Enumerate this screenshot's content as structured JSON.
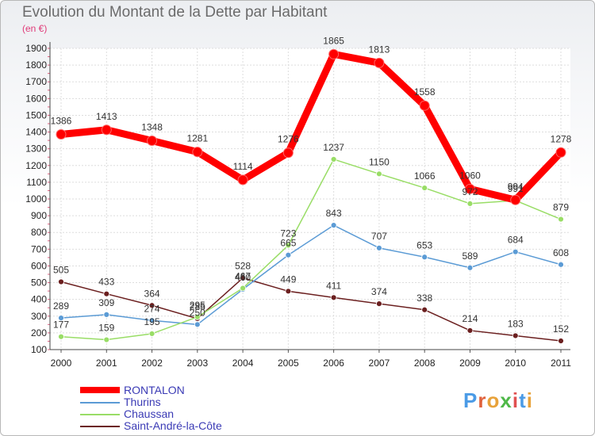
{
  "title": "Evolution du Montant de la Dette par Habitant",
  "subtitle": "(en €)",
  "logo": {
    "letters": [
      "P",
      "r",
      "o",
      "x",
      "i",
      "t",
      "i"
    ],
    "colors": [
      "#4b9be6",
      "#e0623c",
      "#e8a23a",
      "#4fb848",
      "#e05050",
      "#4b9be6",
      "#e8a23a"
    ]
  },
  "chart_data": {
    "type": "line",
    "x": [
      "2000",
      "2001",
      "2002",
      "2003",
      "2004",
      "2005",
      "2006",
      "2007",
      "2008",
      "2009",
      "2010",
      "2011"
    ],
    "ylim": [
      100,
      1900
    ],
    "yticks": [
      100,
      200,
      300,
      400,
      500,
      600,
      700,
      800,
      900,
      1000,
      1100,
      1200,
      1300,
      1400,
      1500,
      1600,
      1700,
      1800,
      1900
    ],
    "grid": true,
    "legend_position": "bottom-left",
    "series": [
      {
        "name": "RONTALON",
        "color": "#ff0000",
        "values": [
          1386,
          1413,
          1348,
          1281,
          1114,
          1276,
          1865,
          1813,
          1558,
          1060,
          994,
          1278
        ]
      },
      {
        "name": "Thurins",
        "color": "#5b9bd5",
        "values": [
          289,
          309,
          274,
          250,
          460,
          665,
          843,
          707,
          653,
          589,
          684,
          608
        ]
      },
      {
        "name": "Chaussan",
        "color": "#99dd66",
        "values": [
          177,
          159,
          195,
          295,
          467,
          723,
          1237,
          1150,
          1066,
          972,
          991,
          879
        ]
      },
      {
        "name": "Saint-André-la-Côte",
        "color": "#6b1f1f",
        "values": [
          505,
          433,
          364,
          285,
          528,
          449,
          411,
          374,
          338,
          214,
          183,
          152
        ]
      }
    ]
  }
}
